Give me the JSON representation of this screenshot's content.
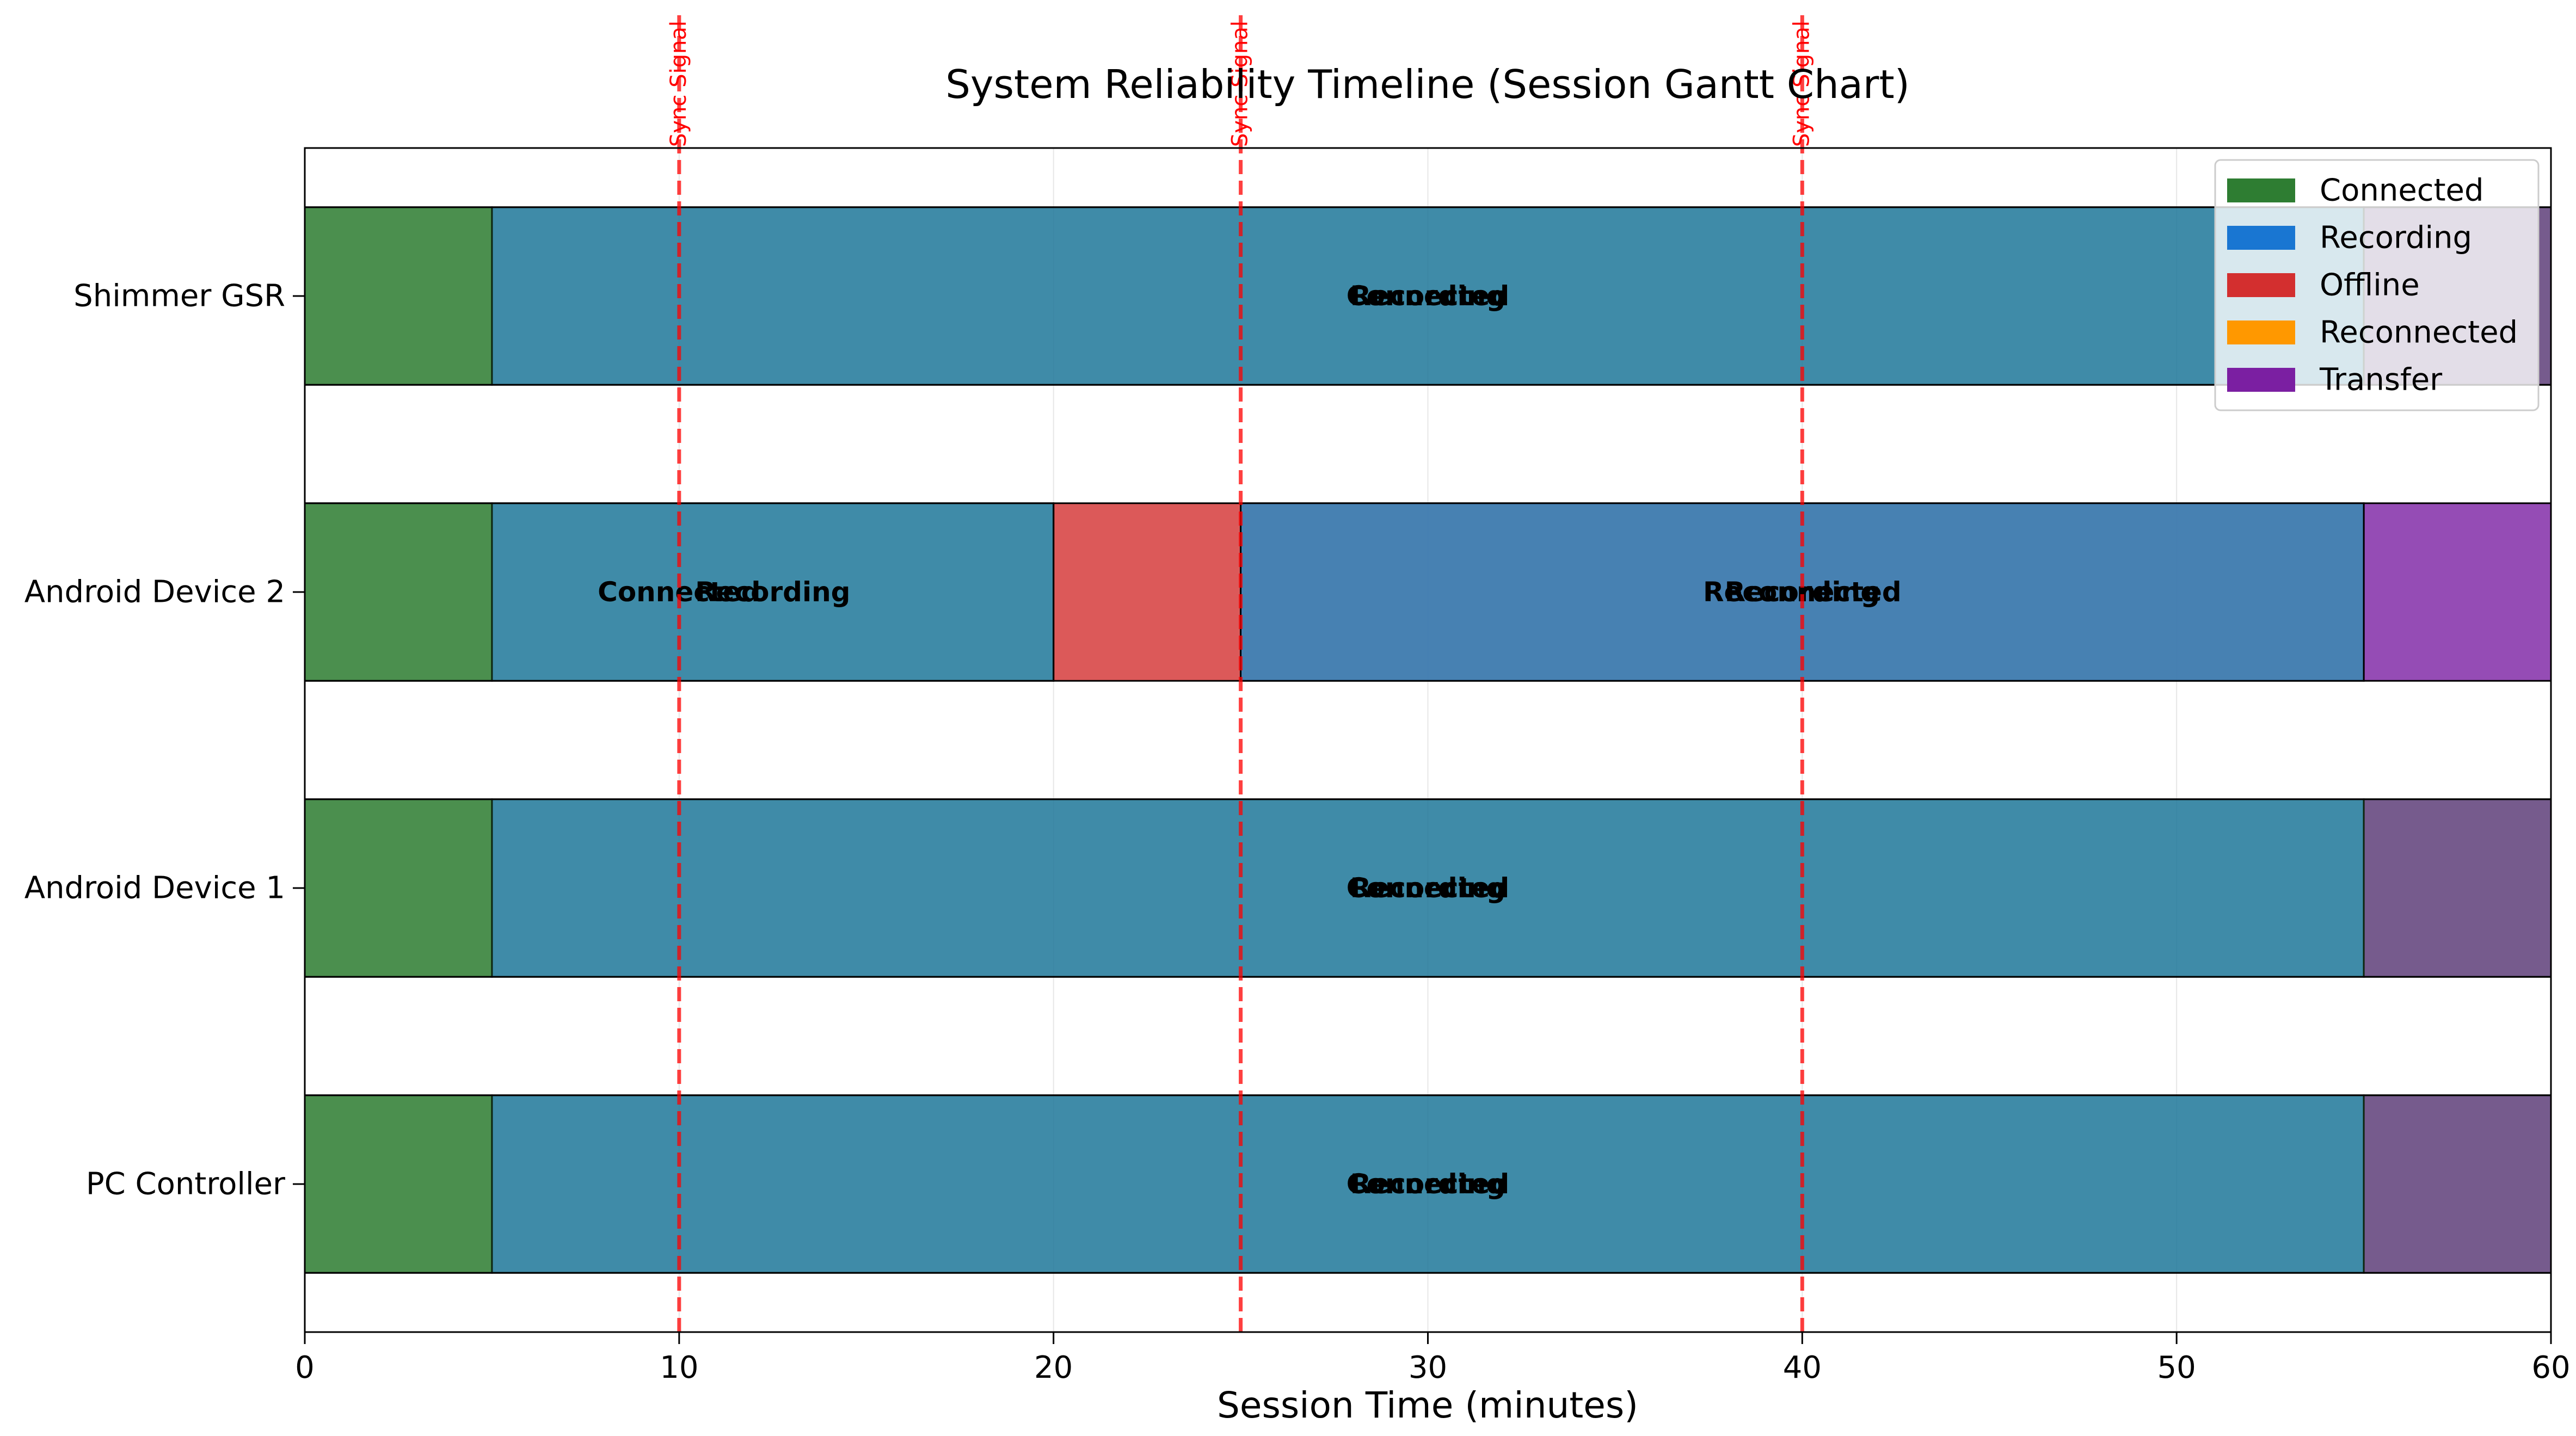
{
  "chart_data": {
    "type": "gantt",
    "title": "System Reliability Timeline (Session Gantt Chart)",
    "xlabel": "Session Time (minutes)",
    "ylabel": "",
    "xlim": [
      0,
      60
    ],
    "xticks": [
      0,
      10,
      20,
      30,
      40,
      50,
      60
    ],
    "grid": "vertical",
    "legend_position": "top-right",
    "legend": [
      {
        "label": "Connected",
        "color": "#2e7d32"
      },
      {
        "label": "Recording",
        "color": "#1976d2"
      },
      {
        "label": "Offline",
        "color": "#d32f2f"
      },
      {
        "label": "Reconnected",
        "color": "#ff9800"
      },
      {
        "label": "Transfer",
        "color": "#7b1fa2"
      }
    ],
    "devices": [
      "PC Controller",
      "Android Device 1",
      "Android Device 2",
      "Shimmer GSR"
    ],
    "segments": [
      {
        "device": "PC Controller",
        "state": "Connected",
        "start": 0,
        "end": 5,
        "color": "#2e7d32",
        "opacity": 0.8
      },
      {
        "device": "PC Controller",
        "state": "Recording",
        "start": 5,
        "end": 55,
        "color": "#1976d2",
        "opacity": 0.8
      },
      {
        "device": "PC Controller",
        "state": "Transfer",
        "start": 55,
        "end": 60,
        "color": "#7b1fa2",
        "opacity": 0.8
      },
      {
        "device": "PC Controller",
        "state": "Connected",
        "start": 0,
        "end": 60,
        "color": "#2e7d32",
        "opacity": 0.3
      },
      {
        "device": "Android Device 1",
        "state": "Connected",
        "start": 0,
        "end": 5,
        "color": "#2e7d32",
        "opacity": 0.8
      },
      {
        "device": "Android Device 1",
        "state": "Recording",
        "start": 5,
        "end": 55,
        "color": "#1976d2",
        "opacity": 0.8
      },
      {
        "device": "Android Device 1",
        "state": "Transfer",
        "start": 55,
        "end": 60,
        "color": "#7b1fa2",
        "opacity": 0.8
      },
      {
        "device": "Android Device 1",
        "state": "Connected",
        "start": 0,
        "end": 60,
        "color": "#2e7d32",
        "opacity": 0.3
      },
      {
        "device": "Android Device 2",
        "state": "Connected",
        "start": 0,
        "end": 5,
        "color": "#2e7d32",
        "opacity": 0.8
      },
      {
        "device": "Android Device 2",
        "state": "Recording",
        "start": 5,
        "end": 20,
        "color": "#1976d2",
        "opacity": 0.8
      },
      {
        "device": "Android Device 2",
        "state": "Offline",
        "start": 20,
        "end": 25,
        "color": "#d32f2f",
        "opacity": 0.8
      },
      {
        "device": "Android Device 2",
        "state": "Reconnected",
        "start": 25,
        "end": 55,
        "color": "#ff9800",
        "opacity": 0.8
      },
      {
        "device": "Android Device 2",
        "state": "Transfer",
        "start": 55,
        "end": 60,
        "color": "#7b1fa2",
        "opacity": 0.8
      },
      {
        "device": "Android Device 2",
        "state": "Connected",
        "start": 0,
        "end": 20,
        "color": "#2e7d32",
        "opacity": 0.3
      },
      {
        "device": "Android Device 2",
        "state": "Recording",
        "start": 25,
        "end": 55,
        "color": "#1976d2",
        "opacity": 0.8
      },
      {
        "device": "Shimmer GSR",
        "state": "Connected",
        "start": 0,
        "end": 5,
        "color": "#2e7d32",
        "opacity": 0.8
      },
      {
        "device": "Shimmer GSR",
        "state": "Recording",
        "start": 5,
        "end": 55,
        "color": "#1976d2",
        "opacity": 0.8
      },
      {
        "device": "Shimmer GSR",
        "state": "Transfer",
        "start": 55,
        "end": 60,
        "color": "#7b1fa2",
        "opacity": 0.8
      },
      {
        "device": "Shimmer GSR",
        "state": "Connected",
        "start": 0,
        "end": 60,
        "color": "#2e7d32",
        "opacity": 0.3
      }
    ],
    "bar_labels": [
      {
        "device": "PC Controller",
        "x": 30,
        "text": "Connected"
      },
      {
        "device": "PC Controller",
        "x": 30,
        "text": "Recording"
      },
      {
        "device": "Android Device 1",
        "x": 30,
        "text": "Connected"
      },
      {
        "device": "Android Device 1",
        "x": 30,
        "text": "Recording"
      },
      {
        "device": "Android Device 2",
        "x": 10,
        "text": "Connected"
      },
      {
        "device": "Android Device 2",
        "x": 12.5,
        "text": "Recording"
      },
      {
        "device": "Android Device 2",
        "x": 40,
        "text": "Reconnected"
      },
      {
        "device": "Android Device 2",
        "x": 40,
        "text": "Recording"
      },
      {
        "device": "Shimmer GSR",
        "x": 30,
        "text": "Connected"
      },
      {
        "device": "Shimmer GSR",
        "x": 30,
        "text": "Recording"
      }
    ],
    "sync_signals": [
      {
        "x": 10,
        "label": "Sync Signal"
      },
      {
        "x": 25,
        "label": "Sync Signal"
      },
      {
        "x": 40,
        "label": "Sync Signal"
      }
    ],
    "sync_color": "#ff0000"
  }
}
